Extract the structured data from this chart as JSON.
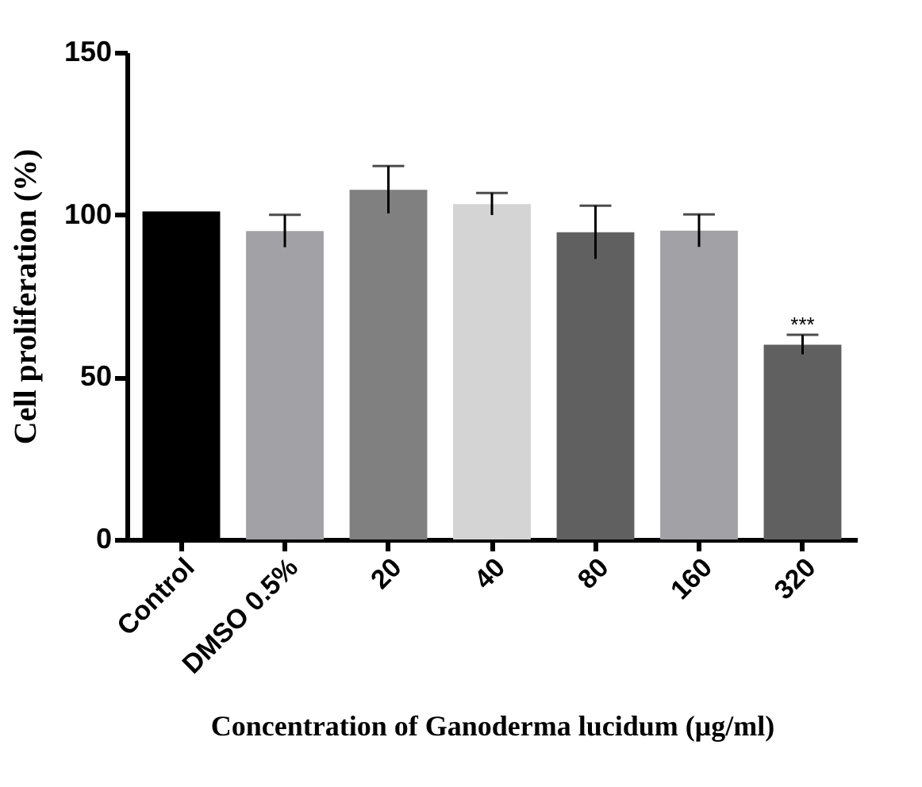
{
  "chart_data": {
    "type": "bar",
    "categories": [
      "Control",
      "DMSO 0.5%",
      "20",
      "40",
      "80",
      "160",
      "320"
    ],
    "values": [
      101,
      95,
      107.7,
      103.3,
      94.6,
      95.1,
      60
    ],
    "errors": [
      null,
      5,
      7.3,
      3.4,
      8.2,
      5,
      3
    ],
    "colors": [
      "#000000",
      "#a2a1a5",
      "#808080",
      "#d4d4d4",
      "#606060",
      "#a2a1a5",
      "#606060"
    ],
    "ylim": [
      0,
      150
    ],
    "yticks": [
      0,
      50,
      100,
      150
    ],
    "ylabel": "Cell proliferation (%)",
    "xlabel": "Concentration of Ganoderma lucidum (μg/ml)",
    "annotations": [
      {
        "text": "***",
        "x": "320",
        "y": 66
      }
    ],
    "grid": false,
    "legend": false
  }
}
